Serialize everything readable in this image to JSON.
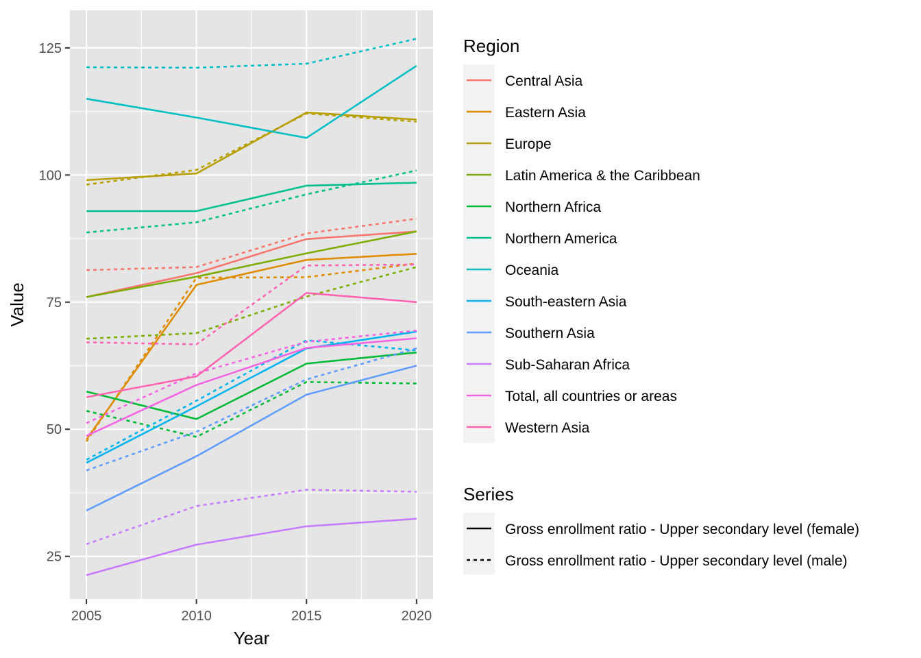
{
  "chart_data": {
    "type": "line",
    "title": "",
    "xlabel": "Year",
    "ylabel": "Value",
    "x": [
      2005,
      2010,
      2015,
      2020
    ],
    "xlim": [
      2004.25,
      2020.75
    ],
    "ylim": [
      16.6,
      132.4
    ],
    "xticks": [
      2005,
      2010,
      2015,
      2020
    ],
    "yticks": [
      25,
      50,
      75,
      100,
      125
    ],
    "grid": true,
    "background": "#e5e5e5",
    "legend_position": "right",
    "legends": {
      "region_title": "Region",
      "series_title": "Series"
    },
    "regions": [
      {
        "name": "Central Asia",
        "color": "#F8766D"
      },
      {
        "name": "Eastern Asia",
        "color": "#DE8C00"
      },
      {
        "name": "Europe",
        "color": "#B79F00"
      },
      {
        "name": "Latin America & the Caribbean",
        "color": "#7CAE00"
      },
      {
        "name": "Northern Africa",
        "color": "#00BA38"
      },
      {
        "name": "Northern America",
        "color": "#00C08B"
      },
      {
        "name": "Oceania",
        "color": "#00BFC4"
      },
      {
        "name": "South-eastern Asia",
        "color": "#00B4F0"
      },
      {
        "name": "Southern Asia",
        "color": "#619CFF"
      },
      {
        "name": "Sub-Saharan Africa",
        "color": "#C77CFF"
      },
      {
        "name": "Total, all countries or areas",
        "color": "#F564E3"
      },
      {
        "name": "Western Asia",
        "color": "#FF64B0"
      }
    ],
    "series_types": [
      {
        "name": "Gross enrollment ratio - Upper secondary level (female)",
        "linetype": "solid"
      },
      {
        "name": "Gross enrollment ratio - Upper secondary level (male)",
        "linetype": "dashed"
      }
    ],
    "series": [
      {
        "region": "Central Asia",
        "type": "Gross enrollment ratio - Upper secondary level (female)",
        "values": [
          76.0,
          80.7,
          87.4,
          88.9
        ]
      },
      {
        "region": "Central Asia",
        "type": "Gross enrollment ratio - Upper secondary level (male)",
        "values": [
          81.3,
          81.9,
          88.5,
          91.4
        ]
      },
      {
        "region": "Eastern Asia",
        "type": "Gross enrollment ratio - Upper secondary level (female)",
        "values": [
          48.0,
          78.4,
          83.3,
          84.5
        ]
      },
      {
        "region": "Eastern Asia",
        "type": "Gross enrollment ratio - Upper secondary level (male)",
        "values": [
          47.6,
          79.8,
          79.9,
          82.6
        ]
      },
      {
        "region": "Europe",
        "type": "Gross enrollment ratio - Upper secondary level (female)",
        "values": [
          99.0,
          100.3,
          112.3,
          110.9
        ]
      },
      {
        "region": "Europe",
        "type": "Gross enrollment ratio - Upper secondary level (male)",
        "values": [
          98.1,
          101.0,
          112.1,
          110.5
        ]
      },
      {
        "region": "Latin America & the Caribbean",
        "type": "Gross enrollment ratio - Upper secondary level (female)",
        "values": [
          76.0,
          80.0,
          84.6,
          88.9
        ]
      },
      {
        "region": "Latin America & the Caribbean",
        "type": "Gross enrollment ratio - Upper secondary level (male)",
        "values": [
          67.8,
          68.9,
          76.1,
          81.9
        ]
      },
      {
        "region": "Northern Africa",
        "type": "Gross enrollment ratio - Upper secondary level (female)",
        "values": [
          57.4,
          52.0,
          62.9,
          65.1
        ]
      },
      {
        "region": "Northern Africa",
        "type": "Gross enrollment ratio - Upper secondary level (male)",
        "values": [
          53.6,
          48.5,
          59.3,
          59.0
        ]
      },
      {
        "region": "Northern America",
        "type": "Gross enrollment ratio - Upper secondary level (female)",
        "values": [
          92.9,
          92.9,
          97.9,
          98.5
        ]
      },
      {
        "region": "Northern America",
        "type": "Gross enrollment ratio - Upper secondary level (male)",
        "values": [
          88.7,
          90.7,
          96.2,
          100.9
        ]
      },
      {
        "region": "Oceania",
        "type": "Gross enrollment ratio - Upper secondary level (female)",
        "values": [
          115.0,
          111.3,
          107.3,
          121.5
        ]
      },
      {
        "region": "Oceania",
        "type": "Gross enrollment ratio - Upper secondary level (male)",
        "values": [
          121.2,
          121.1,
          121.9,
          126.8
        ]
      },
      {
        "region": "South-eastern Asia",
        "type": "Gross enrollment ratio - Upper secondary level (female)",
        "values": [
          43.4,
          54.5,
          65.9,
          69.2
        ]
      },
      {
        "region": "South-eastern Asia",
        "type": "Gross enrollment ratio - Upper secondary level (male)",
        "values": [
          44.0,
          55.6,
          67.5,
          65.5
        ]
      },
      {
        "region": "Southern Asia",
        "type": "Gross enrollment ratio - Upper secondary level (female)",
        "values": [
          34.0,
          44.7,
          56.8,
          62.5
        ]
      },
      {
        "region": "Southern Asia",
        "type": "Gross enrollment ratio - Upper secondary level (male)",
        "values": [
          41.9,
          49.5,
          59.8,
          65.9
        ]
      },
      {
        "region": "Sub-Saharan Africa",
        "type": "Gross enrollment ratio - Upper secondary level (female)",
        "values": [
          21.3,
          27.3,
          30.9,
          32.4
        ]
      },
      {
        "region": "Sub-Saharan Africa",
        "type": "Gross enrollment ratio - Upper secondary level (male)",
        "values": [
          27.4,
          34.9,
          38.1,
          37.7
        ]
      },
      {
        "region": "Total, all countries or areas",
        "type": "Gross enrollment ratio - Upper secondary level (female)",
        "values": [
          48.7,
          58.7,
          66.0,
          67.9
        ]
      },
      {
        "region": "Total, all countries or areas",
        "type": "Gross enrollment ratio - Upper secondary level (male)",
        "values": [
          51.2,
          61.0,
          67.2,
          69.4
        ]
      },
      {
        "region": "Western Asia",
        "type": "Gross enrollment ratio - Upper secondary level (female)",
        "values": [
          56.3,
          60.4,
          76.8,
          75.0
        ]
      },
      {
        "region": "Western Asia",
        "type": "Gross enrollment ratio - Upper secondary level (male)",
        "values": [
          67.1,
          66.7,
          82.2,
          82.4
        ]
      }
    ]
  }
}
